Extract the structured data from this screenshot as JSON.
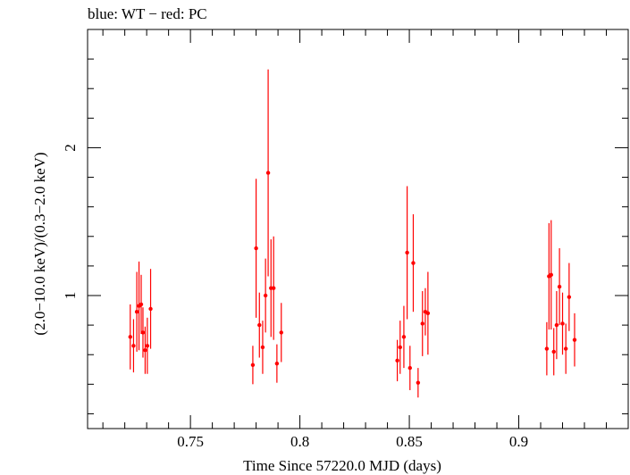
{
  "chart_data": {
    "type": "scatter",
    "title": "blue: WT − red: PC",
    "xlabel": "Time Since 57220.0 MJD (days)",
    "ylabel": "(2.0−10.0 keV)/(0.3−2.0 keV)",
    "xlim": [
      0.703,
      0.95
    ],
    "ylim": [
      0.1,
      2.8
    ],
    "xticks": [
      0.75,
      0.8,
      0.85,
      0.9
    ],
    "xtick_labels": [
      "0.75",
      "0.8",
      "0.85",
      "0.9"
    ],
    "yticks": [
      1,
      2
    ],
    "ytick_labels": [
      "1",
      "2"
    ],
    "series": [
      {
        "name": "PC",
        "color": "#ff0000",
        "points": [
          {
            "x": 0.7225,
            "y": 0.72,
            "yerr": 0.22
          },
          {
            "x": 0.724,
            "y": 0.66,
            "yerr": 0.18
          },
          {
            "x": 0.7255,
            "y": 0.89,
            "yerr": 0.27
          },
          {
            "x": 0.7265,
            "y": 0.93,
            "yerr": 0.3
          },
          {
            "x": 0.7275,
            "y": 0.94,
            "yerr": 0.2
          },
          {
            "x": 0.7283,
            "y": 0.75,
            "yerr": 0.17
          },
          {
            "x": 0.7293,
            "y": 0.63,
            "yerr": 0.16
          },
          {
            "x": 0.7303,
            "y": 0.66,
            "yerr": 0.19
          },
          {
            "x": 0.7318,
            "y": 0.91,
            "yerr": 0.27
          },
          {
            "x": 0.7785,
            "y": 0.53,
            "yerr": 0.13
          },
          {
            "x": 0.78,
            "y": 1.32,
            "yerr": 0.47
          },
          {
            "x": 0.7815,
            "y": 0.8,
            "yerr": 0.22
          },
          {
            "x": 0.783,
            "y": 0.65,
            "yerr": 0.18
          },
          {
            "x": 0.7843,
            "y": 1.0,
            "yerr": 0.25
          },
          {
            "x": 0.7855,
            "y": 1.83,
            "yerr": 0.7
          },
          {
            "x": 0.7868,
            "y": 1.05,
            "yerr": 0.33
          },
          {
            "x": 0.788,
            "y": 1.05,
            "yerr": 0.35
          },
          {
            "x": 0.7895,
            "y": 0.54,
            "yerr": 0.13
          },
          {
            "x": 0.7915,
            "y": 0.75,
            "yerr": 0.2
          },
          {
            "x": 0.8445,
            "y": 0.56,
            "yerr": 0.14
          },
          {
            "x": 0.8458,
            "y": 0.65,
            "yerr": 0.18
          },
          {
            "x": 0.8475,
            "y": 0.72,
            "yerr": 0.21
          },
          {
            "x": 0.849,
            "y": 1.29,
            "yerr": 0.45
          },
          {
            "x": 0.8503,
            "y": 0.51,
            "yerr": 0.15
          },
          {
            "x": 0.8518,
            "y": 1.22,
            "yerr": 0.33
          },
          {
            "x": 0.854,
            "y": 0.41,
            "yerr": 0.1
          },
          {
            "x": 0.856,
            "y": 0.81,
            "yerr": 0.22
          },
          {
            "x": 0.8573,
            "y": 0.89,
            "yerr": 0.16
          },
          {
            "x": 0.8585,
            "y": 0.88,
            "yerr": 0.28
          },
          {
            "x": 0.9128,
            "y": 0.64,
            "yerr": 0.18
          },
          {
            "x": 0.9138,
            "y": 1.13,
            "yerr": 0.36
          },
          {
            "x": 0.9148,
            "y": 1.14,
            "yerr": 0.37
          },
          {
            "x": 0.916,
            "y": 0.62,
            "yerr": 0.16
          },
          {
            "x": 0.9173,
            "y": 0.8,
            "yerr": 0.23
          },
          {
            "x": 0.9186,
            "y": 1.06,
            "yerr": 0.26
          },
          {
            "x": 0.92,
            "y": 0.81,
            "yerr": 0.21
          },
          {
            "x": 0.9215,
            "y": 0.64,
            "yerr": 0.17
          },
          {
            "x": 0.923,
            "y": 0.99,
            "yerr": 0.23
          },
          {
            "x": 0.9255,
            "y": 0.7,
            "yerr": 0.18
          }
        ]
      }
    ]
  }
}
